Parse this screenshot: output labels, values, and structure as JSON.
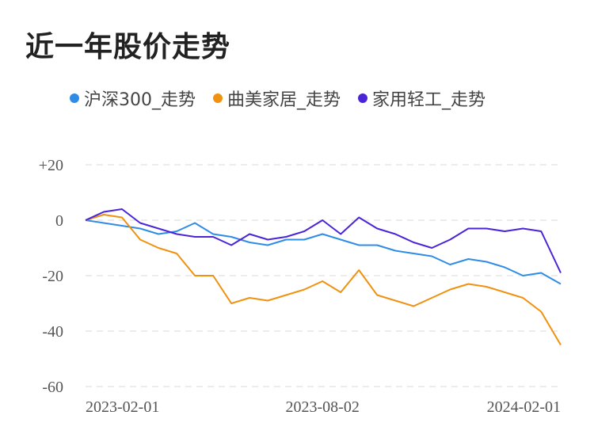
{
  "title": "近一年股价走势",
  "chart_data": {
    "type": "line",
    "title": "近一年股价走势",
    "xlabel": "",
    "ylabel": "",
    "x_ticks": [
      "2023-02-01",
      "2023-08-02",
      "2024-02-01"
    ],
    "y_ticks": [
      "+20",
      "0",
      "-20",
      "-40",
      "-60"
    ],
    "ylim": [
      -60,
      20
    ],
    "grid": true,
    "legend_position": "top",
    "x": [
      "2023-02-01",
      "2023-02-15",
      "2023-03-01",
      "2023-03-15",
      "2023-03-29",
      "2023-04-12",
      "2023-04-26",
      "2023-05-10",
      "2023-05-24",
      "2023-06-07",
      "2023-06-21",
      "2023-07-05",
      "2023-07-19",
      "2023-08-02",
      "2023-08-16",
      "2023-08-30",
      "2023-09-13",
      "2023-09-27",
      "2023-10-11",
      "2023-10-25",
      "2023-11-08",
      "2023-11-22",
      "2023-12-06",
      "2023-12-20",
      "2024-01-03",
      "2024-01-17",
      "2024-02-01"
    ],
    "series": [
      {
        "name": "沪深300_走势",
        "color": "#2f8ce6",
        "values": [
          0,
          -1,
          -2,
          -3,
          -5,
          -4,
          -1,
          -5,
          -6,
          -8,
          -9,
          -7,
          -7,
          -5,
          -7,
          -9,
          -9,
          -11,
          -12,
          -13,
          -16,
          -14,
          -15,
          -17,
          -20,
          -19,
          -23
        ]
      },
      {
        "name": "曲美家居_走势",
        "color": "#f0910f",
        "values": [
          0,
          2,
          1,
          -7,
          -10,
          -12,
          -20,
          -20,
          -30,
          -28,
          -29,
          -27,
          -25,
          -22,
          -26,
          -18,
          -27,
          -29,
          -31,
          -28,
          -25,
          -23,
          -24,
          -26,
          -28,
          -33,
          -45
        ]
      },
      {
        "name": "家用轻工_走势",
        "color": "#4a24d6",
        "values": [
          0,
          3,
          4,
          -1,
          -3,
          -5,
          -6,
          -6,
          -9,
          -5,
          -7,
          -6,
          -4,
          0,
          -5,
          1,
          -3,
          -5,
          -8,
          -10,
          -7,
          -3,
          -3,
          -4,
          -3,
          -4,
          -19
        ]
      }
    ]
  }
}
